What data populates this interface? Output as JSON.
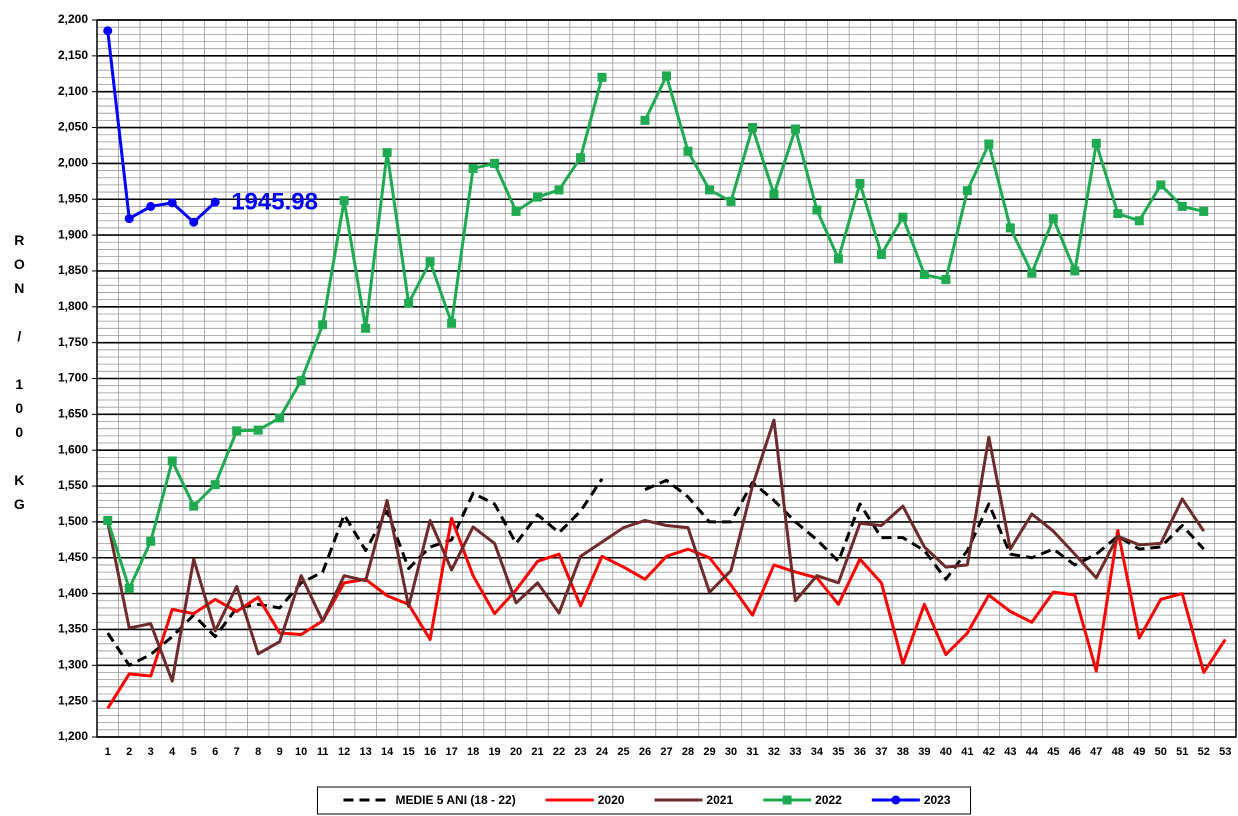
{
  "chart_data": {
    "type": "line",
    "y_label": "RON / 100 KG",
    "categories": [
      "1",
      "2",
      "3",
      "4",
      "5",
      "6",
      "7",
      "8",
      "9",
      "10",
      "11",
      "12",
      "13",
      "14",
      "15",
      "16",
      "17",
      "18",
      "19",
      "20",
      "21",
      "22",
      "23",
      "24",
      "25",
      "26",
      "27",
      "28",
      "29",
      "30",
      "31",
      "32",
      "33",
      "34",
      "35",
      "36",
      "37",
      "38",
      "39",
      "40",
      "41",
      "42",
      "43",
      "44",
      "45",
      "46",
      "47",
      "48",
      "49",
      "50",
      "51",
      "52",
      "53"
    ],
    "ylim": [
      1200,
      2200
    ],
    "yticks": [
      {
        "value": 1200,
        "label": "1,200"
      },
      {
        "value": 1250,
        "label": "1,250"
      },
      {
        "value": 1300,
        "label": "1,300"
      },
      {
        "value": 1350,
        "label": "1,350"
      },
      {
        "value": 1400,
        "label": "1,400"
      },
      {
        "value": 1450,
        "label": "1,450"
      },
      {
        "value": 1500,
        "label": "1,500"
      },
      {
        "value": 1550,
        "label": "1,550"
      },
      {
        "value": 1600,
        "label": "1,600"
      },
      {
        "value": 1650,
        "label": "1,650"
      },
      {
        "value": 1700,
        "label": "1,700"
      },
      {
        "value": 1750,
        "label": "1,750"
      },
      {
        "value": 1800,
        "label": "1,800"
      },
      {
        "value": 1850,
        "label": "1,850"
      },
      {
        "value": 1900,
        "label": "1,900"
      },
      {
        "value": 1950,
        "label": "1,950"
      },
      {
        "value": 2000,
        "label": "2,000"
      },
      {
        "value": 2050,
        "label": "2,050"
      },
      {
        "value": 2100,
        "label": "2,100"
      },
      {
        "value": 2150,
        "label": "2,150"
      },
      {
        "value": 2200,
        "label": "2,200"
      }
    ],
    "grid": true,
    "legend": "bottom",
    "series": [
      {
        "name": "MEDIE 5 ANI (18 - 22)",
        "color": "#000000",
        "style": "dashed",
        "values": [
          1345,
          1300,
          1315,
          1340,
          1370,
          1340,
          1380,
          1385,
          1380,
          1415,
          1430,
          1510,
          1460,
          1515,
          1435,
          1465,
          1475,
          1540,
          1525,
          1470,
          1510,
          1485,
          1515,
          1560,
          null,
          1545,
          1558,
          1535,
          1500,
          1500,
          1555,
          1530,
          1500,
          1475,
          1445,
          1525,
          1478,
          1478,
          1460,
          1420,
          1460,
          1525,
          1455,
          1450,
          1462,
          1440,
          1455,
          1480,
          1462,
          1465,
          1495,
          1462,
          null
        ]
      },
      {
        "name": "2020",
        "color": "#ff0000",
        "style": "solid",
        "values": [
          1240,
          1288,
          1285,
          1378,
          1372,
          1392,
          1375,
          1395,
          1345,
          1343,
          1362,
          1415,
          1420,
          1397,
          1385,
          1336,
          1505,
          1425,
          1372,
          1405,
          1445,
          1455,
          1383,
          1452,
          1437,
          1420,
          1452,
          1462,
          1450,
          1412,
          1370,
          1440,
          1430,
          1422,
          1385,
          1448,
          1415,
          1302,
          1385,
          1315,
          1345,
          1398,
          1375,
          1360,
          1402,
          1398,
          1292,
          1488,
          1338,
          1392,
          1400,
          1290,
          1336
        ]
      },
      {
        "name": "2021",
        "color": "#6e2b2b",
        "style": "solid",
        "values": [
          1500,
          1352,
          1358,
          1278,
          1448,
          1348,
          1410,
          1316,
          1333,
          1425,
          1362,
          1425,
          1418,
          1530,
          1382,
          1502,
          1433,
          1493,
          1470,
          1387,
          1415,
          1373,
          1452,
          1472,
          1492,
          1502,
          1495,
          1492,
          1402,
          1432,
          1550,
          1642,
          1390,
          1425,
          1415,
          1498,
          1495,
          1522,
          1465,
          1437,
          1440,
          1618,
          1462,
          1511,
          1487,
          1455,
          1422,
          1480,
          1468,
          1470,
          1532,
          1487,
          null
        ]
      },
      {
        "name": "2022",
        "color": "#1faa52",
        "style": "solid",
        "marker": "square",
        "values": [
          1502,
          1407,
          1473,
          1585,
          1522,
          1552,
          1627,
          1628,
          1645,
          1697,
          1775,
          1948,
          1770,
          2015,
          1805,
          1863,
          1777,
          1993,
          2000,
          1933,
          1953,
          1963,
          2008,
          2120,
          null,
          2060,
          2122,
          2017,
          1963,
          1947,
          2050,
          1957,
          2048,
          1935,
          1867,
          1972,
          1873,
          1925,
          1845,
          1838,
          1962,
          2027,
          1910,
          1847,
          1923,
          1850,
          2028,
          1930,
          1920,
          1970,
          1940,
          1933,
          null
        ]
      },
      {
        "name": "2023",
        "color": "#0000ff",
        "style": "solid",
        "marker": "circle",
        "values": [
          2185,
          1923,
          1940,
          1945,
          1918,
          1945.98,
          null,
          null,
          null,
          null,
          null,
          null,
          null,
          null,
          null,
          null,
          null,
          null,
          null,
          null,
          null,
          null,
          null,
          null,
          null,
          null,
          null,
          null,
          null,
          null,
          null,
          null,
          null,
          null,
          null,
          null,
          null,
          null,
          null,
          null,
          null,
          null,
          null,
          null,
          null,
          null,
          null,
          null,
          null,
          null,
          null,
          null,
          null
        ],
        "value_labels": [
          null,
          null,
          null,
          null,
          null,
          "1945.98",
          null,
          null,
          null,
          null,
          null,
          null,
          null,
          null,
          null,
          null,
          null,
          null,
          null,
          null,
          null,
          null,
          null,
          null,
          null,
          null,
          null,
          null,
          null,
          null,
          null,
          null,
          null,
          null,
          null,
          null,
          null,
          null,
          null,
          null,
          null,
          null,
          null,
          null,
          null,
          null,
          null,
          null,
          null,
          null,
          null,
          null,
          null
        ]
      }
    ]
  }
}
